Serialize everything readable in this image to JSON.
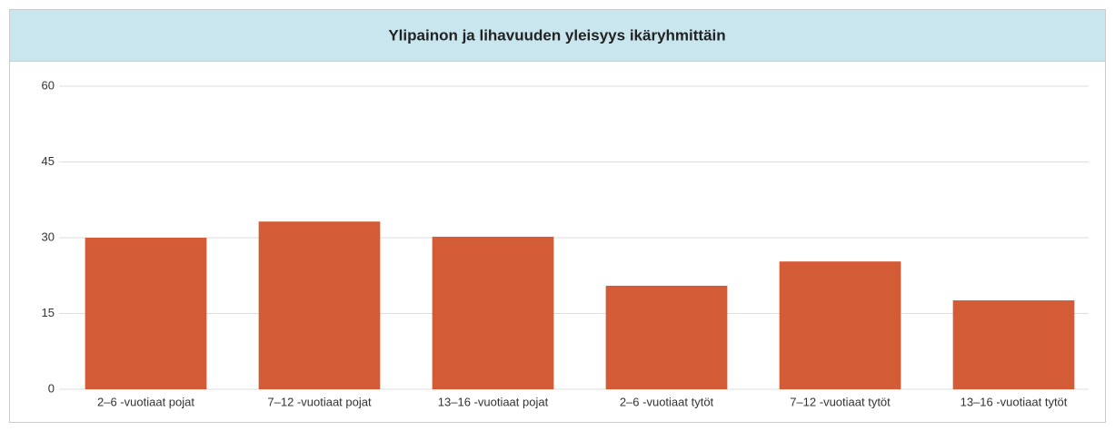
{
  "chart_data": {
    "type": "bar",
    "title": "Ylipainon ja lihavuuden yleisyys ikäryhmittäin",
    "categories": [
      "2–6 -vuotiaat pojat",
      "7–12 -vuotiaat pojat",
      "13–16 -vuotiaat pojat",
      "2–6 -vuotiaat tytöt",
      "7–12 -vuotiaat tytöt",
      "13–16 -vuotiaat tytöt"
    ],
    "values": [
      30,
      33.2,
      30.2,
      20.5,
      25.3,
      17.6
    ],
    "color": "#d35b35",
    "ylim": [
      0,
      60
    ],
    "yticks": [
      0,
      15,
      30,
      45,
      60
    ],
    "grid": true
  }
}
